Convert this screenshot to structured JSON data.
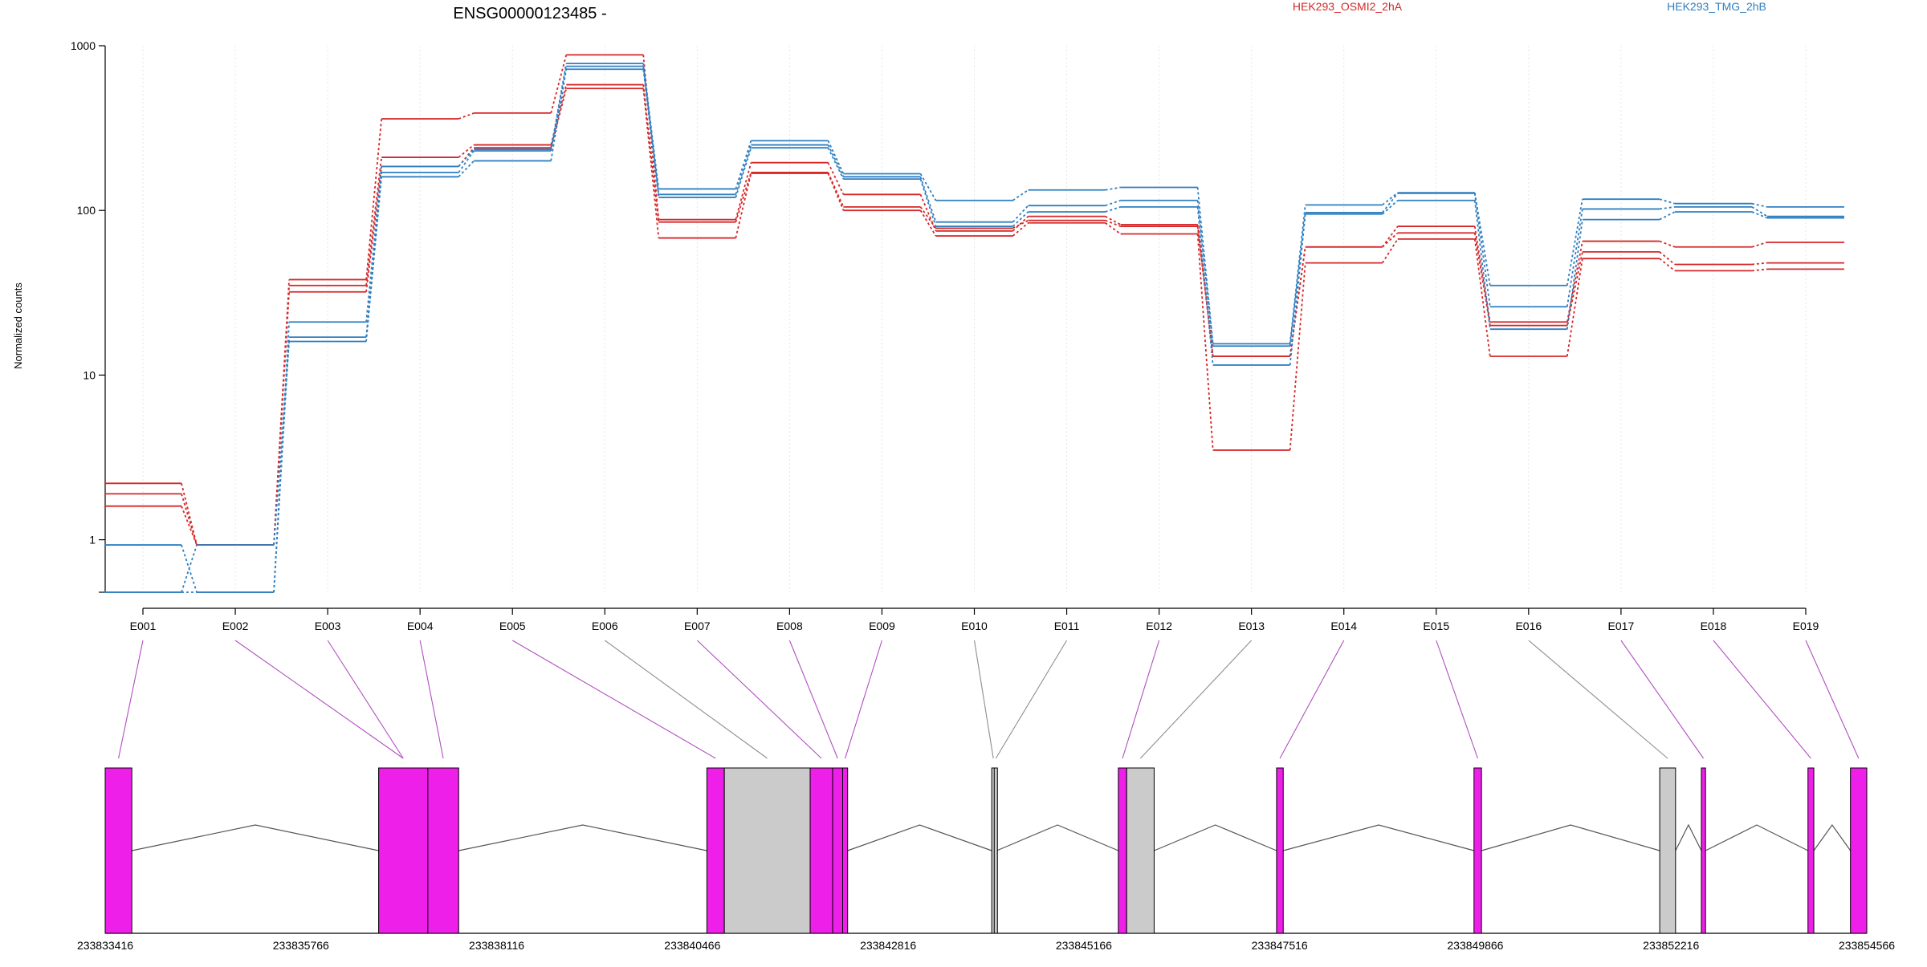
{
  "page": {
    "title": "ENSG00000123485 -"
  },
  "legend": [
    {
      "label": "HEK293_OSMI2_2hA",
      "color": "#d62728"
    },
    {
      "label": "HEK293_TMG_2hB",
      "color": "#2f7fc1"
    }
  ],
  "colors": {
    "red": "#d62728",
    "blue": "#2f7fc1",
    "exon_tested": "#ee1fe9",
    "exon_untested": "#cbcbcb",
    "connector_tested": "#b14fc0",
    "connector_untested": "#8e8e8e"
  },
  "chart_data": {
    "type": "line",
    "title": "ENSG00000123485 -",
    "ylabel": "Normalized counts",
    "yscale": "log",
    "ylim": [
      0.48,
      1000
    ],
    "yticks": [
      1,
      10,
      100,
      1000
    ],
    "ytick_labels": [
      "1",
      "10",
      "100",
      "1000"
    ],
    "categories": [
      "E001",
      "E002",
      "E003",
      "E004",
      "E005",
      "E006",
      "E007",
      "E008",
      "E009",
      "E010",
      "E011",
      "E012",
      "E013",
      "E014",
      "E015",
      "E016",
      "E017",
      "E018",
      "E019"
    ],
    "grid": "vertical",
    "series": [
      {
        "group": "HEK293_OSMI2_2hA",
        "color": "red",
        "values": [
          2.2,
          0.93,
          38,
          360,
          390,
          880,
          88,
          195,
          125,
          75,
          92,
          82,
          13,
          60,
          80,
          21,
          65,
          60,
          64
        ]
      },
      {
        "group": "HEK293_OSMI2_2hA",
        "color": "red",
        "values": [
          1.9,
          0.93,
          35,
          210,
          250,
          580,
          85,
          170,
          105,
          78,
          87,
          80,
          13,
          60,
          73,
          20,
          56,
          47,
          48
        ]
      },
      {
        "group": "HEK293_OSMI2_2hA",
        "color": "red",
        "values": [
          1.6,
          0.93,
          32,
          185,
          240,
          550,
          68,
          168,
          100,
          70,
          84,
          72,
          3.5,
          48,
          67,
          13,
          51,
          43,
          44
        ]
      },
      {
        "group": "HEK293_TMG_2hB",
        "color": "blue",
        "values": [
          0.93,
          0.48,
          21,
          185,
          235,
          780,
          135,
          265,
          167,
          115,
          133,
          138,
          15.5,
          108,
          128,
          35,
          117,
          110,
          105
        ]
      },
      {
        "group": "HEK293_TMG_2hB",
        "color": "blue",
        "values": [
          0.48,
          0.48,
          17,
          170,
          230,
          750,
          125,
          250,
          160,
          85,
          107,
          115,
          15,
          97,
          127,
          26,
          102,
          105,
          92
        ]
      },
      {
        "group": "HEK293_TMG_2hB",
        "color": "blue",
        "values": [
          0.48,
          0.93,
          16,
          160,
          200,
          720,
          120,
          240,
          155,
          80,
          98,
          105,
          11.5,
          95,
          115,
          19,
          88,
          98,
          90
        ]
      }
    ],
    "gene_model": {
      "coordinate_labels": [
        "233833416",
        "233835766",
        "233838116",
        "233840466",
        "233842816",
        "233845166",
        "233847516",
        "233849866",
        "233852216",
        "233854566"
      ],
      "coord_range": [
        233833416,
        233854566
      ],
      "exons": [
        {
          "id": "E001",
          "start": 233833416,
          "end": 233833736,
          "tested": true
        },
        {
          "id": "E002",
          "start": 233836700,
          "end": 233837290,
          "tested": true
        },
        {
          "id": "E003",
          "start": 233836700,
          "end": 233837290,
          "tested": true
        },
        {
          "id": "E004",
          "start": 233837290,
          "end": 233837660,
          "tested": true
        },
        {
          "id": "E005",
          "start": 233840640,
          "end": 233840850,
          "tested": true
        },
        {
          "id": "E006",
          "start": 233840850,
          "end": 233841880,
          "tested": false
        },
        {
          "id": "E007",
          "start": 233841880,
          "end": 233842150,
          "tested": true
        },
        {
          "id": "E008",
          "start": 233842150,
          "end": 233842270,
          "tested": true
        },
        {
          "id": "E009",
          "start": 233842270,
          "end": 233842330,
          "tested": true
        },
        {
          "id": "E010",
          "start": 233844060,
          "end": 233844090,
          "tested": false
        },
        {
          "id": "E011",
          "start": 233844090,
          "end": 233844120,
          "tested": false
        },
        {
          "id": "E012",
          "start": 233845580,
          "end": 233845680,
          "tested": true
        },
        {
          "id": "E013",
          "start": 233845680,
          "end": 233846010,
          "tested": false
        },
        {
          "id": "E014",
          "start": 233847480,
          "end": 233847560,
          "tested": true
        },
        {
          "id": "E015",
          "start": 233849850,
          "end": 233849940,
          "tested": true
        },
        {
          "id": "E016",
          "start": 233852080,
          "end": 233852270,
          "tested": false
        },
        {
          "id": "E017",
          "start": 233852580,
          "end": 233852630,
          "tested": true
        },
        {
          "id": "E018",
          "start": 233853860,
          "end": 233853930,
          "tested": true
        },
        {
          "id": "E019",
          "start": 233854370,
          "end": 233854566,
          "tested": true
        }
      ],
      "introns": [
        {
          "start": 233833736,
          "end": 233836700
        },
        {
          "start": 233837660,
          "end": 233840640
        },
        {
          "start": 233842330,
          "end": 233844060
        },
        {
          "start": 233844120,
          "end": 233845580
        },
        {
          "start": 233846010,
          "end": 233847480
        },
        {
          "start": 233847560,
          "end": 233849850
        },
        {
          "start": 233849940,
          "end": 233852080
        },
        {
          "start": 233852270,
          "end": 233852580
        },
        {
          "start": 233852630,
          "end": 233853860
        },
        {
          "start": 233853930,
          "end": 233854370
        }
      ]
    }
  }
}
